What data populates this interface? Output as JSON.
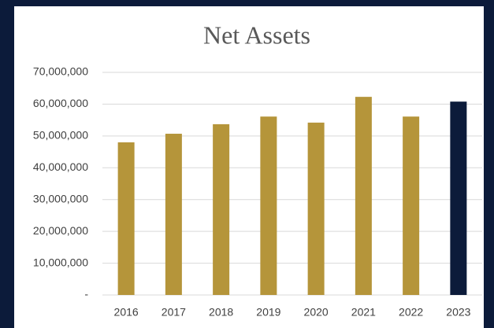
{
  "chart_data": {
    "type": "bar",
    "title": "Net Assets",
    "categories": [
      "2016",
      "2017",
      "2018",
      "2019",
      "2020",
      "2021",
      "2022",
      "2023"
    ],
    "values": [
      48000000,
      50700000,
      53700000,
      56100000,
      54200000,
      62300000,
      56100000,
      60800000
    ],
    "colors": [
      "#b5953a",
      "#b5953a",
      "#b5953a",
      "#b5953a",
      "#b5953a",
      "#b5953a",
      "#b5953a",
      "#0c1b3a"
    ],
    "ylim": [
      0,
      70000000
    ],
    "yticks": [
      {
        "value": 0,
        "label": "-"
      },
      {
        "value": 10000000,
        "label": "10,000,000"
      },
      {
        "value": 20000000,
        "label": "20,000,000"
      },
      {
        "value": 30000000,
        "label": "30,000,000"
      },
      {
        "value": 40000000,
        "label": "40,000,000"
      },
      {
        "value": 50000000,
        "label": "50,000,000"
      },
      {
        "value": 60000000,
        "label": "60,000,000"
      },
      {
        "value": 70000000,
        "label": "70,000,000"
      }
    ],
    "grid": true
  }
}
